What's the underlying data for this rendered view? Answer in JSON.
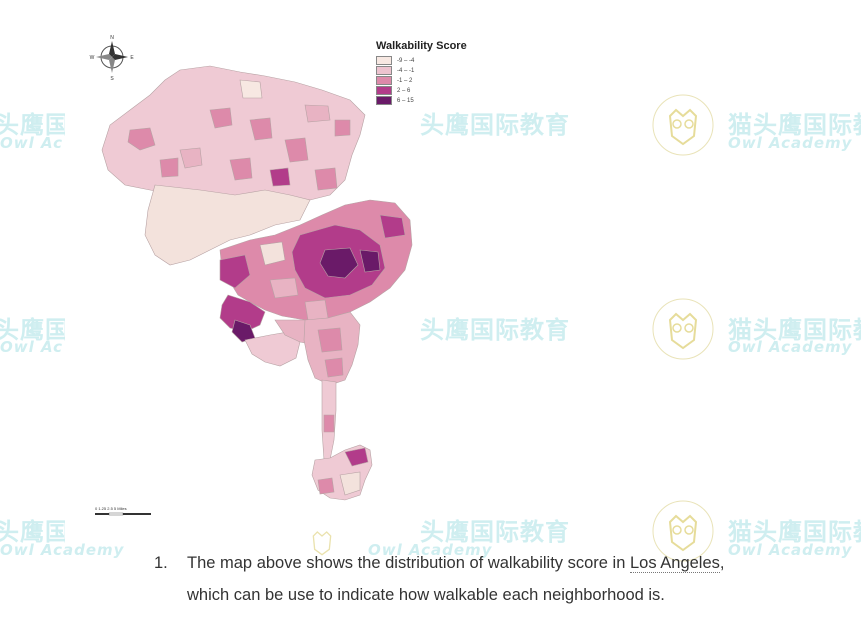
{
  "legend": {
    "title": "Walkability Score",
    "items": [
      {
        "label": "-9 – -4",
        "color": "#f7e8e2"
      },
      {
        "label": "-4 – -1",
        "color": "#edc3cf"
      },
      {
        "label": "-1 – 2",
        "color": "#dd8aaa"
      },
      {
        "label": "2 – 6",
        "color": "#b23c8a"
      },
      {
        "label": "6 – 15",
        "color": "#6a1a68"
      }
    ]
  },
  "scale_bar": {
    "label": "0  1.25 2.5        5 Miles"
  },
  "compass": {
    "n": "N",
    "s": "S",
    "e": "E",
    "w": "W"
  },
  "watermark": {
    "cn": "猫头鹰国际教育",
    "en": "Owl Academy"
  },
  "caption": {
    "number": "1.",
    "line1_before": "The map above shows the distribution of walkability score in ",
    "place": "Los Angeles",
    "line1_after": ",",
    "line2": "which can be use to indicate how walkable each neighborhood is."
  }
}
